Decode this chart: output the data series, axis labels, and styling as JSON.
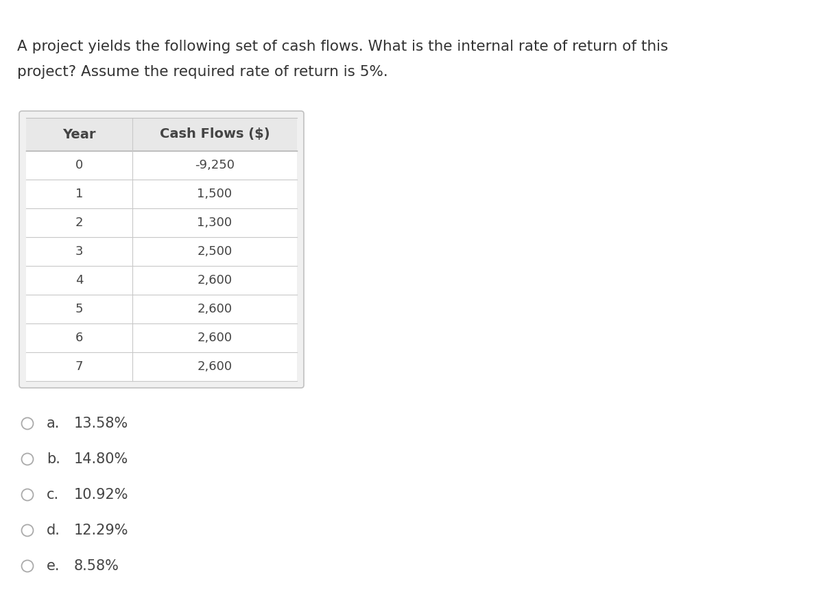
{
  "title_line1": "A project yields the following set of cash flows. What is the internal rate of return of this",
  "title_line2": "project? Assume the required rate of return is 5%.",
  "table_col1_header": "Year",
  "table_col2_header": "Cash Flows ($)",
  "years": [
    "0",
    "1",
    "2",
    "3",
    "4",
    "5",
    "6",
    "7"
  ],
  "cash_flows": [
    "-9,250",
    "1,500",
    "1,300",
    "2,500",
    "2,600",
    "2,600",
    "2,600",
    "2,600"
  ],
  "options": [
    {
      "label": "a.",
      "value": "13.58%"
    },
    {
      "label": "b.",
      "value": "14.80%"
    },
    {
      "label": "c.",
      "value": "10.92%"
    },
    {
      "label": "d.",
      "value": "12.29%"
    },
    {
      "label": "e.",
      "value": "8.58%"
    }
  ],
  "text_color": "#444444",
  "title_color": "#333333",
  "font_size_title": 15.5,
  "font_size_table_header": 14,
  "font_size_table_data": 13,
  "font_size_options": 15
}
